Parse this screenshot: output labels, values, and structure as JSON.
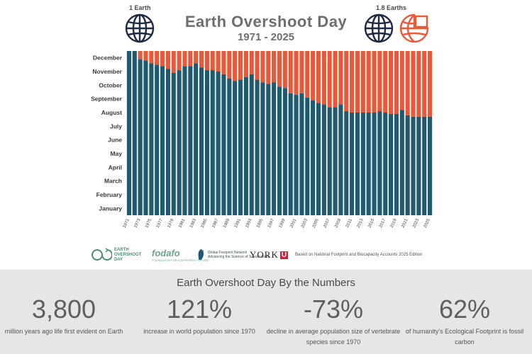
{
  "header": {
    "title": "Earth Overshoot Day",
    "subtitle": "1971 - 2025",
    "left_globe_label": "1 Earth",
    "right_globe_label": "1.8 Earths",
    "left_globe_icon": "globe-icon",
    "right_globe_icons": [
      "globe-icon",
      "partial-globe-icon"
    ]
  },
  "colors": {
    "overshoot_red": "#e8593a",
    "deficit_teal": "#1e5a72",
    "globe_navy": "#1f2a44"
  },
  "chart_data": {
    "type": "bar",
    "stacked": true,
    "orientation": "vertical",
    "x": [
      1971,
      1972,
      1973,
      1974,
      1975,
      1976,
      1977,
      1978,
      1979,
      1980,
      1981,
      1982,
      1983,
      1984,
      1985,
      1986,
      1987,
      1988,
      1989,
      1990,
      1991,
      1992,
      1993,
      1994,
      1995,
      1996,
      1997,
      1998,
      1999,
      2000,
      2001,
      2002,
      2003,
      2004,
      2005,
      2006,
      2007,
      2008,
      2009,
      2010,
      2011,
      2012,
      2013,
      2014,
      2015,
      2016,
      2017,
      2018,
      2019,
      2020,
      2021,
      2022,
      2023,
      2024,
      2025
    ],
    "x_tick_labels": [
      "1971",
      "1973",
      "1975",
      "1977",
      "1979",
      "1981",
      "1983",
      "1985",
      "1987",
      "1989",
      "1991",
      "1993",
      "1995",
      "1997",
      "1999",
      "2001",
      "2003",
      "2005",
      "2007",
      "2009",
      "2011",
      "2013",
      "2015",
      "2017",
      "2019",
      "2021",
      "2023",
      "2025"
    ],
    "y_tick_labels": [
      "January",
      "February",
      "March",
      "April",
      "May",
      "June",
      "July",
      "August",
      "September",
      "October",
      "November",
      "December"
    ],
    "y_unit": "months elapsed in year (day of year / 30.4)",
    "ylim": [
      0,
      12
    ],
    "series": [
      {
        "values": [
          12.0,
          12.0,
          11.4,
          11.3,
          11.1,
          11.0,
          10.9,
          10.7,
          10.4,
          10.6,
          10.9,
          10.9,
          11.1,
          10.8,
          10.6,
          10.6,
          10.5,
          10.3,
          10.0,
          9.8,
          9.9,
          10.1,
          10.3,
          9.9,
          9.7,
          9.6,
          9.7,
          9.4,
          9.3,
          8.9,
          8.8,
          8.9,
          8.6,
          8.4,
          8.2,
          8.1,
          7.9,
          7.9,
          8.1,
          7.6,
          7.5,
          7.5,
          7.5,
          7.5,
          7.5,
          7.6,
          7.5,
          7.4,
          7.4,
          7.7,
          7.3,
          7.2,
          7.2,
          7.2,
          7.2
        ]
      },
      {
        "values": [
          0.0,
          0.0,
          0.6,
          0.7,
          0.9,
          1.0,
          1.1,
          1.3,
          1.6,
          1.4,
          1.1,
          1.1,
          0.9,
          1.2,
          1.4,
          1.4,
          1.5,
          1.7,
          2.0,
          2.2,
          2.1,
          1.9,
          1.7,
          2.1,
          2.3,
          2.4,
          2.3,
          2.6,
          2.7,
          3.1,
          3.2,
          3.1,
          3.4,
          3.6,
          3.8,
          3.9,
          4.1,
          4.1,
          3.9,
          4.4,
          4.5,
          4.5,
          4.5,
          4.5,
          4.5,
          4.4,
          4.5,
          4.6,
          4.6,
          4.3,
          4.7,
          4.8,
          4.8,
          4.8,
          4.8
        ]
      }
    ],
    "grid": false,
    "legend": "none"
  },
  "logos": {
    "eod_line1": "EARTH",
    "eod_line2": "OVERSHOOT",
    "eod_line3": "DAY",
    "fodafo": "fodafo",
    "fodafo_sub": "FOUNDATION FOR A DIFFERENT FUTURE",
    "gfn_line1": "Global Footprint Network",
    "gfn_line2": "Advancing the Science of Sustainability",
    "york": "YORK",
    "york_u": "U",
    "accounts": "Based on National Footprint and Biocapacity Accounts 2025 Edition"
  },
  "numbers": {
    "heading": "Earth Overshoot Day By the Numbers",
    "stats": [
      {
        "value": "3,800",
        "desc": "million years ago life first evident on Earth"
      },
      {
        "value": "121%",
        "desc": "increase in world population since 1970"
      },
      {
        "value": "-73%",
        "desc": "decline in average population size of vertebrate species since 1970"
      },
      {
        "value": "62%",
        "desc": "of humanity's Ecological Footprint is fossil carbon"
      }
    ]
  }
}
